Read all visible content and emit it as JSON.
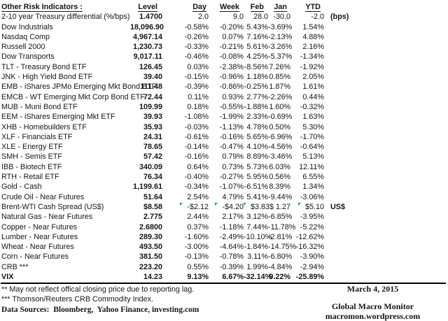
{
  "colors": {
    "flag_green": "#00a63c",
    "text": "#151515",
    "line": "#000000"
  },
  "table": {
    "title": "Other Risk Indicators :",
    "columns": [
      "Level",
      "Day",
      "Week",
      "Feb",
      "Jan",
      "YTD"
    ],
    "rows": [
      {
        "name": "2-10 year Treasury differential (%/bps)",
        "level": "1.4700",
        "day": "2.0",
        "week": "9.0",
        "feb": "28.0",
        "jan": "-30.0",
        "ytd": "-2.0",
        "suffix": "(bps)",
        "bold": false,
        "flags": []
      },
      {
        "name": "Dow Industrials",
        "level": "18,096.90",
        "day": "-0.58%",
        "week": "-0.20%",
        "feb": "5.43%",
        "jan": "-3.69%",
        "ytd": "1.54%",
        "suffix": "",
        "bold": false,
        "flags": []
      },
      {
        "name": "Nasdaq Comp",
        "level": "4,967.14",
        "day": "-0.26%",
        "week": "0.07%",
        "feb": "7.16%",
        "jan": "-2.13%",
        "ytd": "4.88%",
        "suffix": "",
        "bold": false,
        "flags": []
      },
      {
        "name": "Russell 2000",
        "level": "1,230.73",
        "day": "-0.33%",
        "week": "-0.21%",
        "feb": "5.61%",
        "jan": "-3.26%",
        "ytd": "2.16%",
        "suffix": "",
        "bold": false,
        "flags": []
      },
      {
        "name": "Dow Transports",
        "level": "9,017.11",
        "day": "-0.46%",
        "week": "-0.08%",
        "feb": "4.25%",
        "jan": "-5.37%",
        "ytd": "-1.34%",
        "suffix": "",
        "bold": false,
        "flags": []
      },
      {
        "name": "TLT - Treasury Bond ETF",
        "level": "126.45",
        "day": "0.03%",
        "week": "-2.38%",
        "feb": "-8.56%",
        "jan": "7.26%",
        "ytd": "-1.92%",
        "suffix": "",
        "bold": false,
        "flags": []
      },
      {
        "name": "JNK - High Yield Bond ETF",
        "level": "39.40",
        "day": "-0.15%",
        "week": "-0.96%",
        "feb": "1.18%",
        "jan": "0.85%",
        "ytd": "2.05%",
        "suffix": "",
        "bold": false,
        "flags": []
      },
      {
        "name": "EMB - iShares JPMo Emerging Mkt Bond ETF",
        "level": "111.48",
        "day": "-0.39%",
        "week": "-0.86%",
        "feb": "-0.25%",
        "jan": "1.87%",
        "ytd": "1.61%",
        "suffix": "",
        "bold": false,
        "flags": []
      },
      {
        "name": "EMCB - WT Emerging Mkt Corp Bond ETF",
        "level": "72.44",
        "day": "0.11%",
        "week": "0.93%",
        "feb": "2.77%",
        "jan": "-2.26%",
        "ytd": "0.44%",
        "suffix": "",
        "bold": false,
        "flags": []
      },
      {
        "name": "MUB - Muni Bond ETF",
        "level": "109.99",
        "day": "0.18%",
        "week": "-0.55%",
        "feb": "-1.88%",
        "jan": "1.60%",
        "ytd": "-0.32%",
        "suffix": "",
        "bold": false,
        "flags": []
      },
      {
        "name": "EEM - iShares Emerging Mkt ETF",
        "level": "39.93",
        "day": "-1.08%",
        "week": "-1.99%",
        "feb": "2.33%",
        "jan": "-0.69%",
        "ytd": "1.63%",
        "suffix": "",
        "bold": false,
        "flags": []
      },
      {
        "name": "XHB - Homebuilders ETF",
        "level": "35.93",
        "day": "-0.03%",
        "week": "-1.13%",
        "feb": "4.78%",
        "jan": "0.50%",
        "ytd": "5.30%",
        "suffix": "",
        "bold": false,
        "flags": []
      },
      {
        "name": "XLF - Financials ETF",
        "level": "24.31",
        "day": "-0.61%",
        "week": "-0.16%",
        "feb": "5.65%",
        "jan": "-6.96%",
        "ytd": "-1.70%",
        "suffix": "",
        "bold": false,
        "flags": []
      },
      {
        "name": "XLE - Energy ETF",
        "level": "78.65",
        "day": "-0.14%",
        "week": "-0.47%",
        "feb": "4.10%",
        "jan": "-4.56%",
        "ytd": "-0.64%",
        "suffix": "",
        "bold": false,
        "flags": []
      },
      {
        "name": "SMH - Semis ETF",
        "level": "57.42",
        "day": "-0.16%",
        "week": "0.79%",
        "feb": "8.89%",
        "jan": "-3.46%",
        "ytd": "5.13%",
        "suffix": "",
        "bold": false,
        "flags": []
      },
      {
        "name": "IBB - Biotech ETF",
        "level": "340.09",
        "day": "0.64%",
        "week": "0.73%",
        "feb": "5.73%",
        "jan": "6.03%",
        "ytd": "12.11%",
        "suffix": "",
        "bold": false,
        "flags": []
      },
      {
        "name": "RTH - Retail ETF",
        "level": "76.34",
        "day": "-0.40%",
        "week": "-0.27%",
        "feb": "5.95%",
        "jan": "0.56%",
        "ytd": "6.55%",
        "suffix": "",
        "bold": false,
        "flags": []
      },
      {
        "name": "Gold - Cash",
        "level": "1,199.61",
        "day": "-0.34%",
        "week": "-1.07%",
        "feb": "-6.51%",
        "jan": "8.39%",
        "ytd": "1.34%",
        "suffix": "",
        "bold": false,
        "flags": []
      },
      {
        "name": "Crude Oil - Near Futures",
        "level": "51.64",
        "day": "2.54%",
        "week": "4.79%",
        "feb": "5.41%",
        "jan": "-9.44%",
        "ytd": "-3.06%",
        "suffix": "",
        "bold": false,
        "flags": []
      },
      {
        "name": "Brent-WTI Cash Spread (US$)",
        "level": "$8.58",
        "day": "-$2.12",
        "week": "-$4.20",
        "feb": "$3.83",
        "jan": "$ 1.27",
        "ytd": "$5.10",
        "suffix": "US$",
        "bold": false,
        "flags": [
          "day",
          "week",
          "feb",
          "ytd"
        ]
      },
      {
        "name": "Natural Gas - Near Futures",
        "level": "2.775",
        "day": "2.44%",
        "week": "2.17%",
        "feb": "3.12%",
        "jan": "-6.85%",
        "ytd": "-3.95%",
        "suffix": "",
        "bold": false,
        "flags": []
      },
      {
        "name": "Copper - Near Futures",
        "level": "2.6800",
        "day": "0.37%",
        "week": "-1.18%",
        "feb": "7.44%",
        "jan": "-11.78%",
        "ytd": "-5.22%",
        "suffix": "",
        "bold": false,
        "flags": []
      },
      {
        "name": "Lumber - Near Futures",
        "level": "289.30",
        "day": "-1.60%",
        "week": "-2.49%",
        "feb": "-10.10%",
        "jan": "-2.81%",
        "ytd": "-12.62%",
        "suffix": "",
        "bold": false,
        "flags": []
      },
      {
        "name": "Wheat - Near Futures",
        "level": "493.50",
        "day": "-3.00%",
        "week": "-4.64%",
        "feb": "-1.84%",
        "jan": "-14.75%",
        "ytd": "-16.32%",
        "suffix": "",
        "bold": false,
        "flags": []
      },
      {
        "name": "Corn - Near Futures",
        "level": "381.50",
        "day": "-0.13%",
        "week": "-0.78%",
        "feb": "3.11%",
        "jan": "-6.80%",
        "ytd": "-3.90%",
        "suffix": "",
        "bold": false,
        "flags": []
      },
      {
        "name": "CRB ***",
        "level": "223.20",
        "day": "0.55%",
        "week": "-0.39%",
        "feb": "1.99%",
        "jan": "-4.84%",
        "ytd": "-2.94%",
        "suffix": "",
        "bold": false,
        "flags": []
      },
      {
        "name": "VIX",
        "level": "14.23",
        "day": "9.13%",
        "week": "6.67%",
        "feb": "-32.14%",
        "jan": "9.22%",
        "ytd": "-25.89%",
        "suffix": "",
        "bold": true,
        "flags": []
      }
    ]
  },
  "footnotes": {
    "note2": "**  May not reflect offical closing price due to reporting lag.",
    "note3": "*** Thomson/Reuters CRB Commodity Index.",
    "sources": "Data Sources:  Bloomberg,  Yahoo Finance, investing.com"
  },
  "footer": {
    "date": "March 4, 2015",
    "brand": "Global Macro Monitor",
    "url": "macromon.wordpress.com"
  }
}
